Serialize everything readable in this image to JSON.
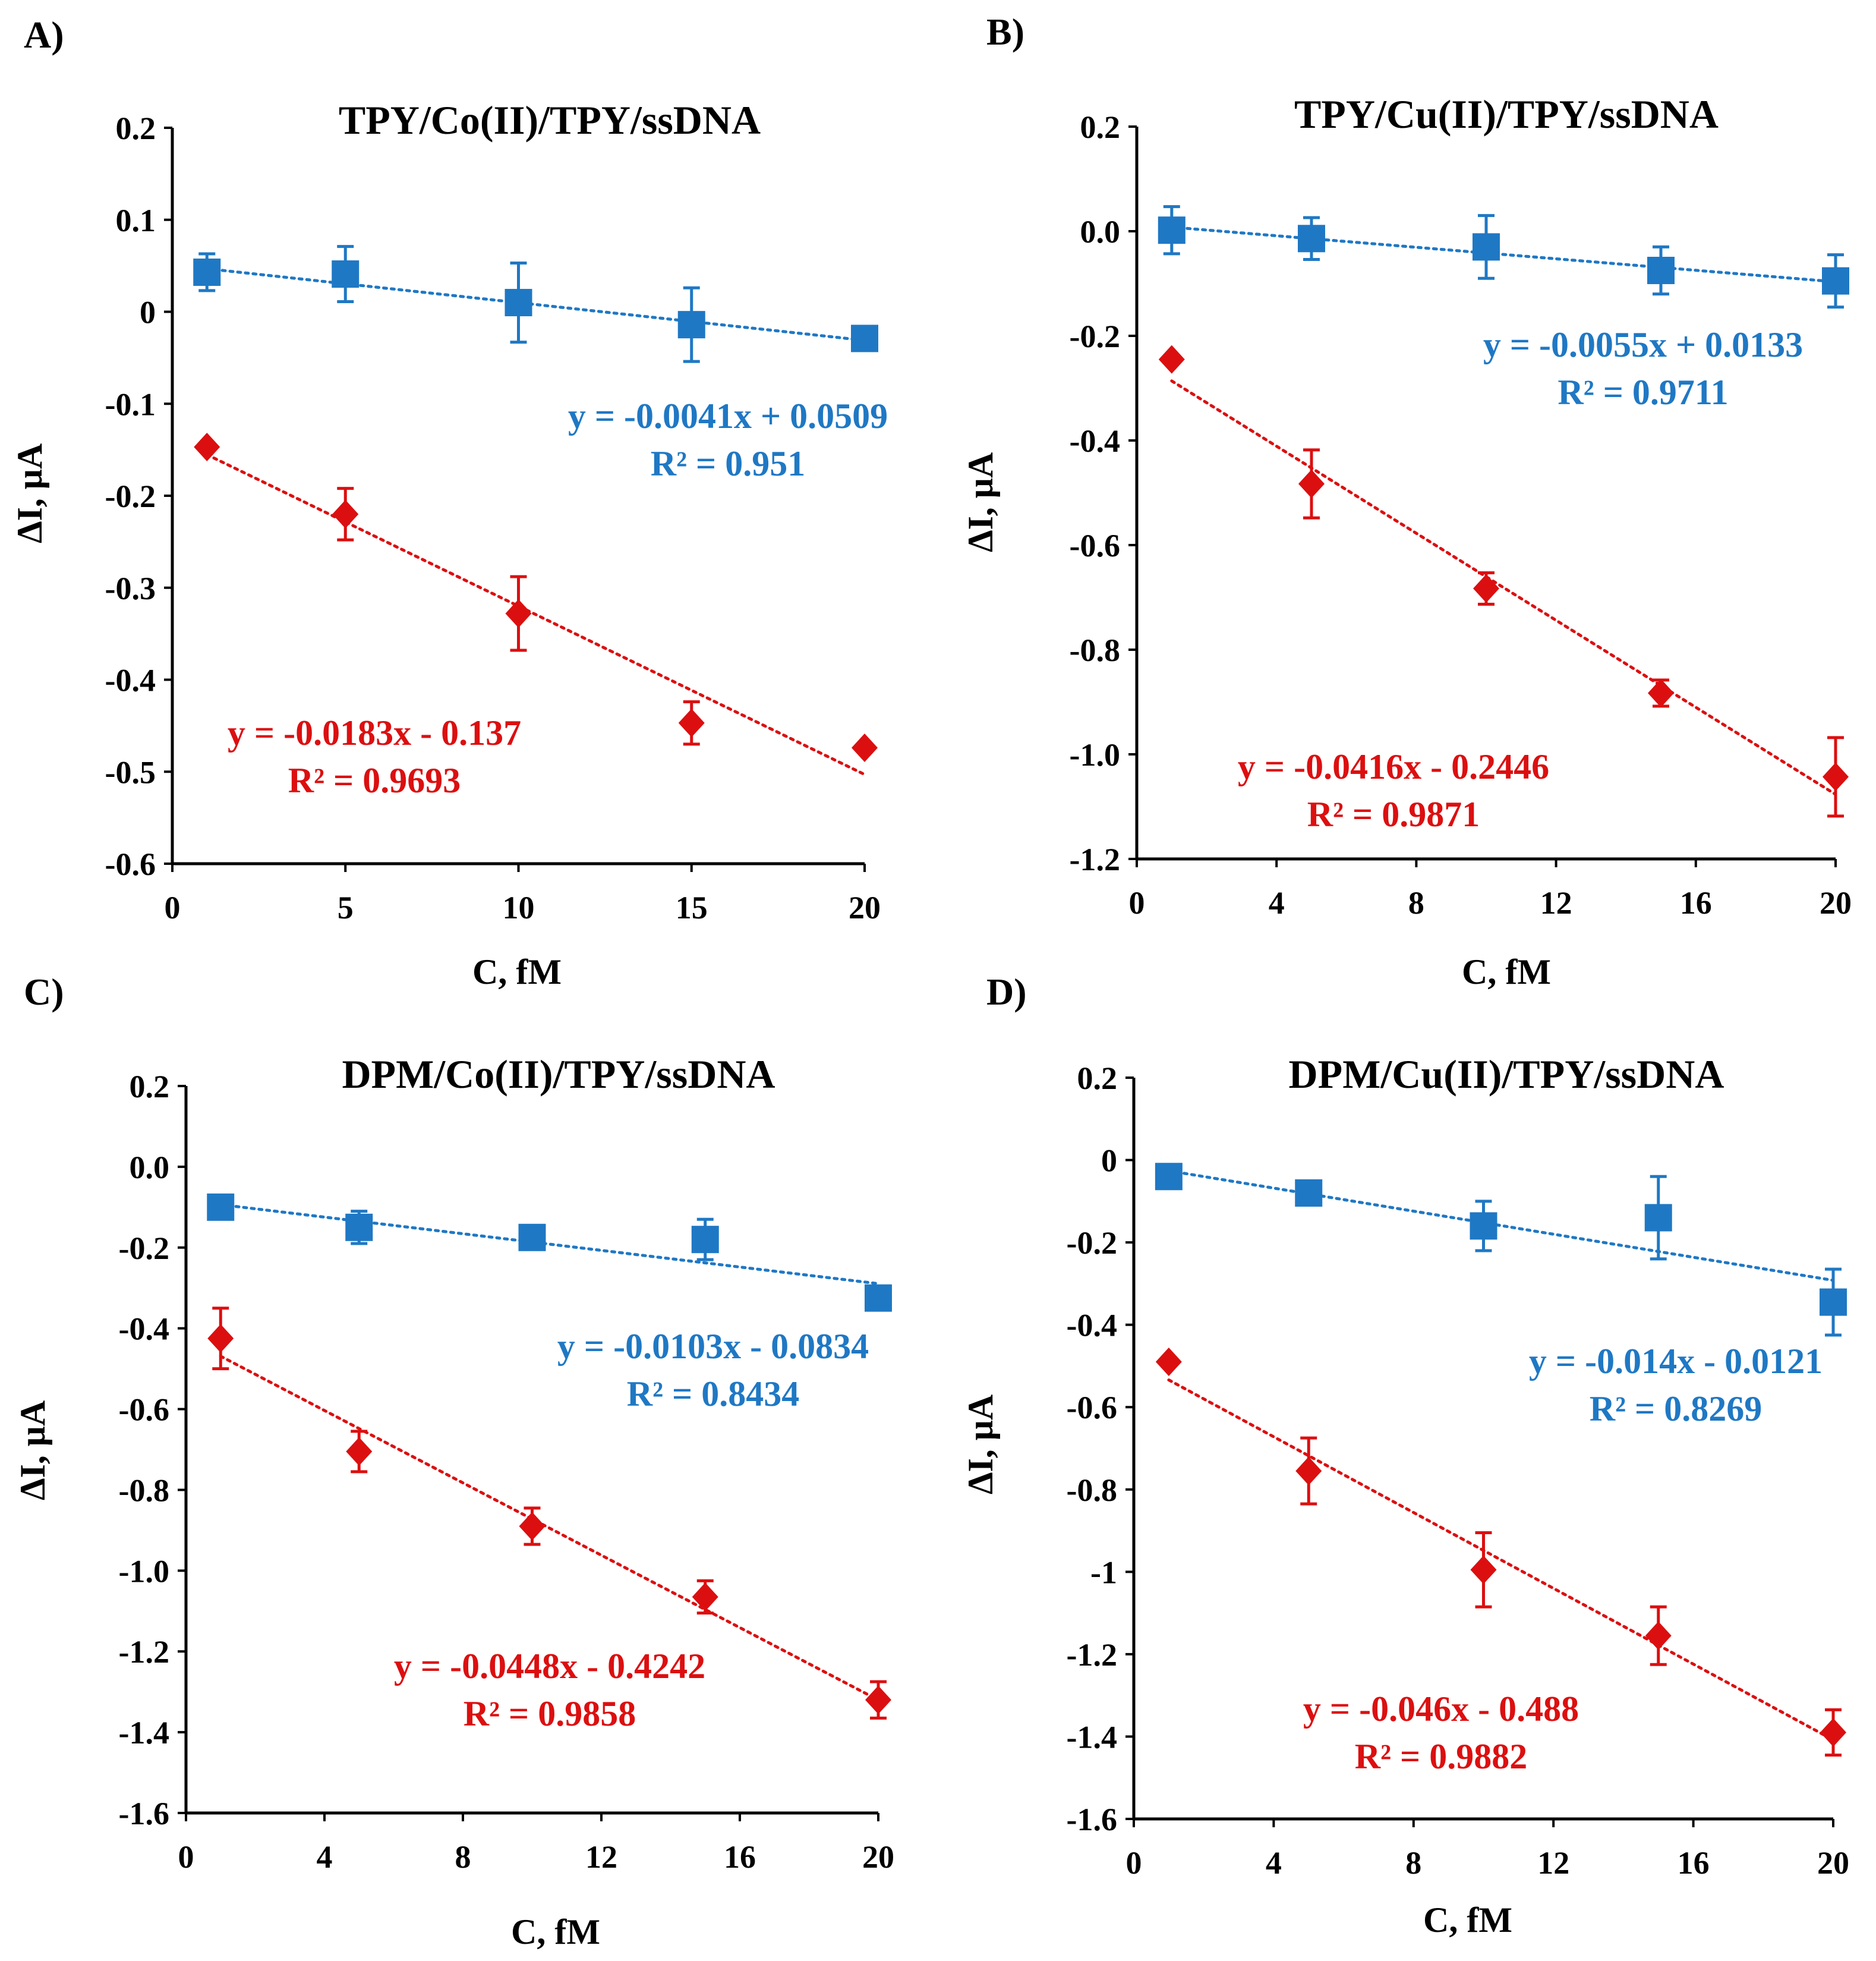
{
  "chart_data": [
    {
      "type": "scatter",
      "panel": "A)",
      "title": "TPY/Co(II)/TPY/ssDNA",
      "xlabel": "C, fM",
      "ylabel": "ΔI, μA",
      "xlim": [
        0,
        20
      ],
      "ylim": [
        -0.6,
        0.2
      ],
      "xticks": [
        0,
        5,
        10,
        15,
        20
      ],
      "xtick_labels": [
        "0",
        "5",
        "10",
        "15",
        "20"
      ],
      "yticks": [
        0.2,
        0.1,
        0,
        -0.1,
        -0.2,
        -0.3,
        -0.4,
        -0.5,
        -0.6
      ],
      "ytick_labels": [
        "0.2",
        "0.1",
        "0",
        "-0.1",
        "-0.2",
        "-0.3",
        "-0.4",
        "-0.5",
        "-0.6"
      ],
      "series": [
        {
          "name": "blue",
          "color": "#1f78c4",
          "marker": "square",
          "x": [
            1,
            5,
            10,
            15,
            20
          ],
          "y": [
            0.043,
            0.041,
            0.01,
            -0.014,
            -0.029
          ],
          "err": [
            0.02,
            0.03,
            0.043,
            0.04,
            0.0
          ],
          "trendline": {
            "slope": -0.0041,
            "intercept": 0.0509
          },
          "equation": "y = -0.0041x + 0.0509",
          "r2_label": "R² = 0.951"
        },
        {
          "name": "red",
          "color": "#dc0f10",
          "marker": "diamond",
          "x": [
            1,
            5,
            10,
            15,
            20
          ],
          "y": [
            -0.147,
            -0.22,
            -0.328,
            -0.447,
            -0.474
          ],
          "err": [
            0.0,
            0.028,
            0.04,
            0.023,
            0.0
          ],
          "trendline": {
            "slope": -0.0183,
            "intercept": -0.137
          },
          "equation": "y = -0.0183x - 0.137",
          "r2_label": "R² = 0.9693"
        }
      ]
    },
    {
      "type": "scatter",
      "panel": "B)",
      "title": "TPY/Cu(II)/TPY/ssDNA",
      "xlabel": "C, fM",
      "ylabel": "ΔI, μA",
      "xlim": [
        0,
        20
      ],
      "ylim": [
        -1.2,
        0.2
      ],
      "xticks": [
        0,
        4,
        8,
        12,
        16,
        20
      ],
      "xtick_labels": [
        "0",
        "4",
        "8",
        "12",
        "16",
        "20"
      ],
      "yticks": [
        0.2,
        0.0,
        -0.2,
        -0.4,
        -0.6,
        -0.8,
        -1.0,
        -1.2
      ],
      "ytick_labels": [
        "0.2",
        "0.0",
        "-0.2",
        "-0.4",
        "-0.6",
        "-0.8",
        "-1.0",
        "-1.2"
      ],
      "series": [
        {
          "name": "blue",
          "color": "#1f78c4",
          "marker": "square",
          "x": [
            1,
            5,
            10,
            15,
            20
          ],
          "y": [
            0.002,
            -0.014,
            -0.03,
            -0.075,
            -0.095
          ],
          "err": [
            0.045,
            0.04,
            0.06,
            0.045,
            0.05
          ],
          "trendline": {
            "slope": -0.0055,
            "intercept": 0.0133
          },
          "equation": "y = -0.0055x + 0.0133",
          "r2_label": "R² = 0.9711"
        },
        {
          "name": "red",
          "color": "#dc0f10",
          "marker": "diamond",
          "x": [
            1,
            5,
            10,
            15,
            20
          ],
          "y": [
            -0.245,
            -0.483,
            -0.683,
            -0.883,
            -1.043
          ],
          "err": [
            0.0,
            0.065,
            0.03,
            0.025,
            0.075
          ],
          "trendline": {
            "slope": -0.0416,
            "intercept": -0.2446
          },
          "equation": "y = -0.0416x - 0.2446",
          "r2_label": "R² = 0.9871"
        }
      ]
    },
    {
      "type": "scatter",
      "panel": "C)",
      "title": "DPM/Co(II)/TPY/ssDNA",
      "xlabel": "C, fM",
      "ylabel": "ΔI, μA",
      "xlim": [
        0,
        20
      ],
      "ylim": [
        -1.6,
        0.2
      ],
      "xticks": [
        0,
        4,
        8,
        12,
        16,
        20
      ],
      "xtick_labels": [
        "0",
        "4",
        "8",
        "12",
        "16",
        "20"
      ],
      "yticks": [
        0.2,
        0.0,
        -0.2,
        -0.4,
        -0.6,
        -0.8,
        -1.0,
        -1.2,
        -1.4,
        -1.6
      ],
      "ytick_labels": [
        "0.2",
        "0.0",
        "-0.2",
        "-0.4",
        "-0.6",
        "-0.8",
        "-1.0",
        "-1.2",
        "-1.4",
        "-1.6"
      ],
      "series": [
        {
          "name": "blue",
          "color": "#1f78c4",
          "marker": "square",
          "x": [
            1,
            5,
            10,
            15,
            20
          ],
          "y": [
            -0.1,
            -0.15,
            -0.175,
            -0.18,
            -0.325
          ],
          "err": [
            0.0,
            0.04,
            0.0,
            0.05,
            0.0
          ],
          "trendline": {
            "slope": -0.0103,
            "intercept": -0.0834
          },
          "equation": "y = -0.0103x - 0.0834",
          "r2_label": "R² = 0.8434"
        },
        {
          "name": "red",
          "color": "#dc0f10",
          "marker": "diamond",
          "x": [
            1,
            5,
            10,
            15,
            20
          ],
          "y": [
            -0.425,
            -0.705,
            -0.89,
            -1.065,
            -1.32
          ],
          "err": [
            0.075,
            0.05,
            0.045,
            0.04,
            0.045
          ],
          "trendline": {
            "slope": -0.0448,
            "intercept": -0.4242
          },
          "equation": "y = -0.0448x - 0.4242",
          "r2_label": "R² = 0.9858"
        }
      ]
    },
    {
      "type": "scatter",
      "panel": "D)",
      "title": "DPM/Cu(II)/TPY/ssDNA",
      "xlabel": "C, fM",
      "ylabel": "ΔI, μA",
      "xlim": [
        0,
        20
      ],
      "ylim": [
        -1.6,
        0.2
      ],
      "xticks": [
        0,
        4,
        8,
        12,
        16,
        20
      ],
      "xtick_labels": [
        "0",
        "4",
        "8",
        "12",
        "16",
        "20"
      ],
      "yticks": [
        0.2,
        0,
        -0.2,
        -0.4,
        -0.6,
        -0.8,
        -1,
        -1.2,
        -1.4,
        -1.6
      ],
      "ytick_labels": [
        "0.2",
        "0",
        "-0.2",
        "-0.4",
        "-0.6",
        "-0.8",
        "-1",
        "-1.2",
        "-1.4",
        "-1.6"
      ],
      "series": [
        {
          "name": "blue",
          "color": "#1f78c4",
          "marker": "square",
          "x": [
            1,
            5,
            10,
            15,
            20
          ],
          "y": [
            -0.04,
            -0.08,
            -0.16,
            -0.14,
            -0.345
          ],
          "err": [
            0.0,
            0.0,
            0.06,
            0.1,
            0.08
          ],
          "trendline": {
            "slope": -0.014,
            "intercept": -0.0121
          },
          "equation": "y = -0.014x - 0.0121",
          "r2_label": "R² = 0.8269"
        },
        {
          "name": "red",
          "color": "#dc0f10",
          "marker": "diamond",
          "x": [
            1,
            5,
            10,
            15,
            20
          ],
          "y": [
            -0.49,
            -0.755,
            -0.995,
            -1.155,
            -1.39
          ],
          "err": [
            0.0,
            0.08,
            0.09,
            0.07,
            0.055
          ],
          "trendline": {
            "slope": -0.046,
            "intercept": -0.488
          },
          "equation": "y = -0.046x - 0.488",
          "r2_label": "R² = 0.9882"
        }
      ]
    }
  ]
}
